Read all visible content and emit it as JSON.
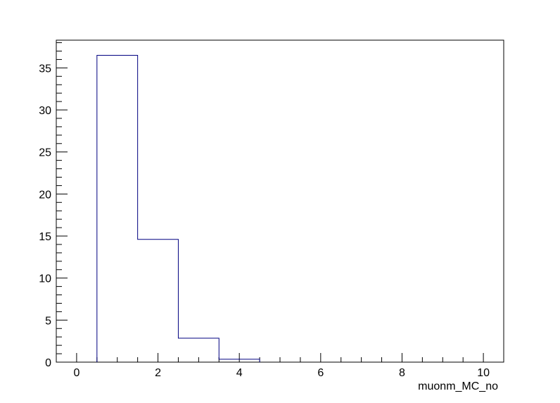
{
  "chart_data": {
    "type": "bar",
    "histogram": true,
    "title": "",
    "xlabel": "muonm_MC_no",
    "ylabel": "",
    "xlim": [
      -0.5,
      10.5
    ],
    "ylim": [
      0,
      38.3
    ],
    "bins": [
      {
        "low": 0.5,
        "high": 1.5,
        "value": 36.5
      },
      {
        "low": 1.5,
        "high": 2.5,
        "value": 14.6
      },
      {
        "low": 2.5,
        "high": 3.5,
        "value": 2.85
      },
      {
        "low": 3.5,
        "high": 4.5,
        "value": 0.35
      }
    ],
    "x_ticks": [
      "0",
      "2",
      "4",
      "6",
      "8",
      "10"
    ],
    "y_ticks": [
      "0",
      "5",
      "10",
      "15",
      "20",
      "25",
      "30",
      "35"
    ],
    "line_color": "#000080",
    "grid": false
  }
}
